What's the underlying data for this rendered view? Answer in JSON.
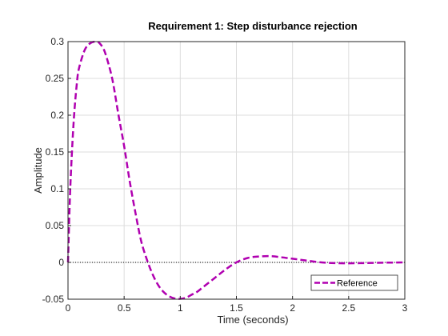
{
  "chart_data": {
    "type": "line",
    "title": "Requirement 1: Step disturbance rejection",
    "xlabel": "Time (seconds)",
    "ylabel": "Amplitude",
    "xlim": [
      0,
      3
    ],
    "ylim": [
      -0.05,
      0.3
    ],
    "x_ticks": [
      0,
      0.5,
      1,
      1.5,
      2,
      2.5,
      3
    ],
    "x_tick_labels": [
      "0",
      "0.5",
      "1",
      "1.5",
      "2",
      "2.5",
      "3"
    ],
    "y_ticks": [
      -0.05,
      0,
      0.05,
      0.1,
      0.15,
      0.2,
      0.25,
      0.3
    ],
    "y_tick_labels": [
      "-0.05",
      "0",
      "0.05",
      "0.1",
      "0.15",
      "0.2",
      "0.25",
      "0.3"
    ],
    "grid": true,
    "legend_position": "bottom-right",
    "zero_line": true,
    "series": [
      {
        "name": "Reference",
        "style": "dashed",
        "color": "#b000b0",
        "x": [
          0,
          0.02,
          0.05,
          0.08,
          0.1,
          0.15,
          0.2,
          0.25,
          0.28,
          0.32,
          0.36,
          0.4,
          0.45,
          0.5,
          0.55,
          0.6,
          0.65,
          0.7,
          0.75,
          0.8,
          0.85,
          0.9,
          0.95,
          1.0,
          1.05,
          1.1,
          1.15,
          1.2,
          1.3,
          1.4,
          1.5,
          1.6,
          1.7,
          1.8,
          1.9,
          2.0,
          2.1,
          2.2,
          2.3,
          2.4,
          2.5,
          2.6,
          2.7,
          2.8,
          2.9,
          3.0
        ],
        "y": [
          0,
          0.1,
          0.19,
          0.245,
          0.265,
          0.289,
          0.298,
          0.3,
          0.298,
          0.289,
          0.27,
          0.245,
          0.2,
          0.158,
          0.11,
          0.068,
          0.03,
          0.005,
          -0.015,
          -0.03,
          -0.04,
          -0.046,
          -0.049,
          -0.0495,
          -0.048,
          -0.044,
          -0.04,
          -0.034,
          -0.022,
          -0.01,
          0.0,
          0.006,
          0.008,
          0.0085,
          0.007,
          0.005,
          0.003,
          0.001,
          -0.0005,
          -0.001,
          -0.0012,
          -0.001,
          -0.0007,
          -0.0004,
          -0.0002,
          0.0
        ]
      }
    ]
  }
}
